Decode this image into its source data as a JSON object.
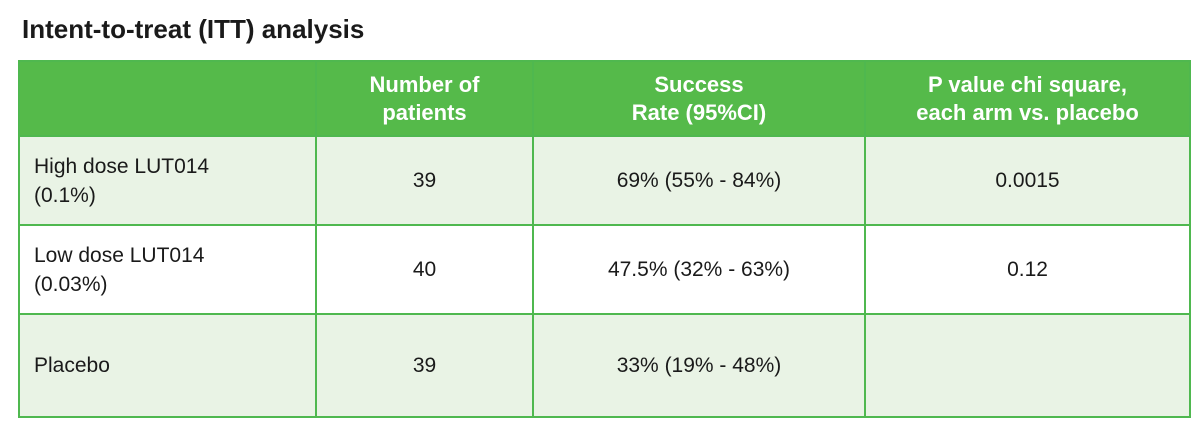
{
  "title": "Intent-to-treat (ITT) analysis",
  "colors": {
    "header_bg": "#55ba4a",
    "border": "#4fb84f",
    "row_alt_bg": "#e9f3e5",
    "row_plain_bg": "#ffffff",
    "header_text": "#ffffff"
  },
  "table": {
    "headers": [
      {
        "lines": [
          "",
          ""
        ]
      },
      {
        "lines": [
          "Number of",
          "patients"
        ]
      },
      {
        "lines": [
          "Success",
          "Rate (95%CI)"
        ]
      },
      {
        "lines": [
          "P value chi square,",
          "each arm vs. placebo"
        ]
      }
    ],
    "rows": [
      {
        "label_lines": [
          "High dose LUT014",
          "(0.1%)"
        ],
        "patients": "39",
        "success_rate": "69% (55% - 84%)",
        "p_value": "0.0015"
      },
      {
        "label_lines": [
          "Low dose LUT014",
          "(0.03%)"
        ],
        "patients": "40",
        "success_rate": "47.5% (32% - 63%)",
        "p_value": "0.12"
      },
      {
        "label_lines": [
          "Placebo"
        ],
        "patients": "39",
        "success_rate": "33% (19% - 48%)",
        "p_value": ""
      }
    ]
  }
}
